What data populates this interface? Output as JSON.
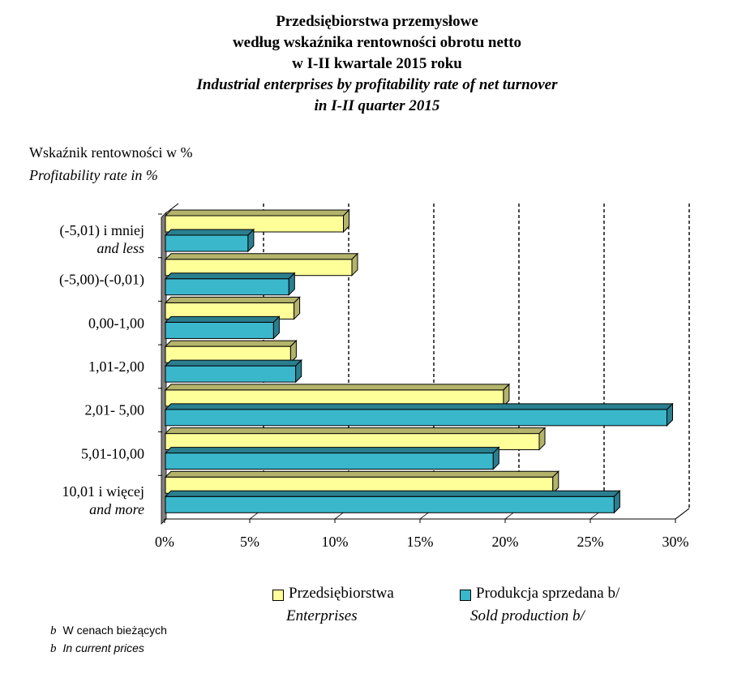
{
  "chart_data": {
    "type": "bar",
    "orientation": "horizontal",
    "title": [
      "Przedsiębiorstwa przemysłowe",
      "według wskaźnika rentowności obrotu netto",
      "w I-II kwartale 2015 roku"
    ],
    "title_en": [
      "Industrial enterprises by profitability rate of  net turnover",
      "in I-II quarter 2015"
    ],
    "ylabel": "Wskaźnik rentowności w %",
    "ylabel_en": "Profitability rate in %",
    "categories": [
      {
        "label": "(-5,01) i mniej",
        "label_en": "and less"
      },
      {
        "label": "(-5,00)-(-0,01)",
        "label_en": ""
      },
      {
        "label": "0,00-1,00",
        "label_en": ""
      },
      {
        "label": "1,01-2,00",
        "label_en": ""
      },
      {
        "label": "2,01- 5,00",
        "label_en": ""
      },
      {
        "label": "5,01-10,00",
        "label_en": ""
      },
      {
        "label": "10,01 i więcej",
        "label_en": "and more"
      }
    ],
    "series": [
      {
        "name": "Przedsiębiorstwa",
        "name_en": "Enterprises",
        "color": "#FFFF99",
        "side_color": "#B3B36B",
        "values": [
          10.5,
          11.0,
          7.6,
          7.4,
          19.9,
          22.0,
          22.8
        ]
      },
      {
        "name": "Produkcja sprzedana b/",
        "name_en": "Sold production b/",
        "color": "#3BB7CC",
        "side_color": "#2A7F8F",
        "values": [
          4.9,
          7.3,
          6.4,
          7.7,
          29.5,
          19.3,
          26.4
        ]
      }
    ],
    "xlim": [
      0,
      30
    ],
    "xticks": [
      0,
      5,
      10,
      15,
      20,
      25,
      30
    ],
    "xtick_labels": [
      "0%",
      "5%",
      "10%",
      "15%",
      "20%",
      "25%",
      "30%"
    ],
    "gridlines": "vertical dashed"
  },
  "footnotes": [
    {
      "mark": "b",
      "text": "W cenach bieżących"
    },
    {
      "mark": "b",
      "text": "In current prices"
    }
  ]
}
